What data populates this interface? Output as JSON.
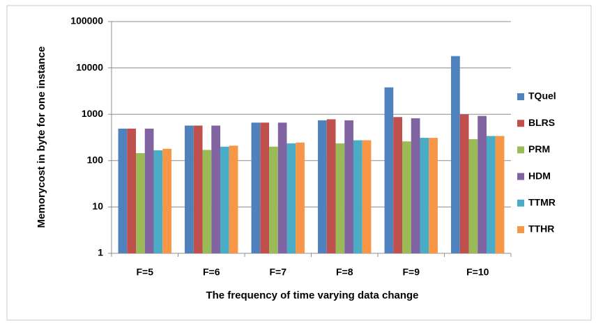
{
  "chart_data": {
    "type": "bar",
    "y_label": "Memorycost in byte for one instance",
    "x_label": "The frequency of time varying data change",
    "categories": [
      "F=5",
      "F=6",
      "F=7",
      "F=8",
      "F=9",
      "F=10"
    ],
    "series": [
      {
        "name": "TQuel",
        "color": "#4f81bd",
        "values": [
          490,
          570,
          660,
          740,
          3800,
          18000
        ]
      },
      {
        "name": "BLRS",
        "color": "#c0504d",
        "values": [
          490,
          570,
          660,
          780,
          870,
          1000
        ]
      },
      {
        "name": "PRM",
        "color": "#9bbb59",
        "values": [
          145,
          170,
          200,
          235,
          260,
          290
        ]
      },
      {
        "name": "HDM",
        "color": "#8064a2",
        "values": [
          490,
          570,
          660,
          740,
          820,
          920
        ]
      },
      {
        "name": "TTMR",
        "color": "#4bacc6",
        "values": [
          167,
          200,
          235,
          275,
          310,
          340
        ]
      },
      {
        "name": "TTHR",
        "color": "#f79646",
        "values": [
          180,
          210,
          245,
          275,
          310,
          340
        ]
      }
    ],
    "ylim": [
      1,
      100000
    ],
    "yticks": [
      1,
      10,
      100,
      1000,
      10000,
      100000
    ],
    "log_scale": true,
    "grid": true,
    "legend": "right"
  }
}
